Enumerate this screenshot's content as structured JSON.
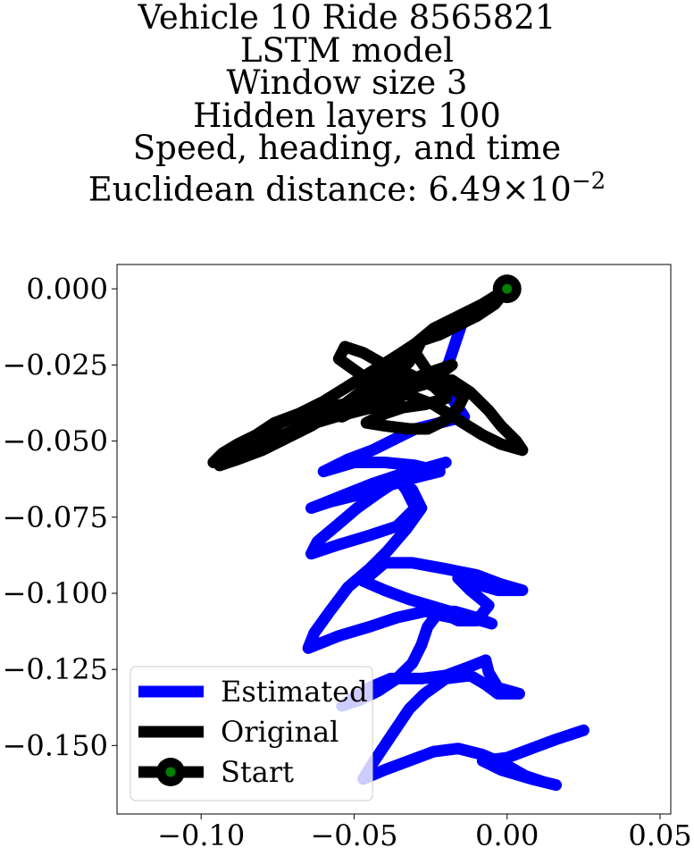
{
  "title_lines": [
    "Vehicle 10 Ride 8565821",
    "LSTM model",
    "Window size 3",
    "Hidden layers 100",
    "Speed, heading, and time"
  ],
  "title_distance": {
    "prefix": "Euclidean distance: ",
    "mantissa": "6.49",
    "times": "×10",
    "exponent": "−2"
  },
  "chart_data": {
    "type": "line",
    "xlim": [
      -0.1275,
      0.0535
    ],
    "ylim": [
      -0.1725,
      0.008
    ],
    "xticks": [
      {
        "value": -0.1,
        "label": "−0.10"
      },
      {
        "value": -0.05,
        "label": "−0.05"
      },
      {
        "value": 0.0,
        "label": "0.00"
      },
      {
        "value": 0.05,
        "label": "0.05"
      }
    ],
    "yticks": [
      {
        "value": 0.0,
        "label": "0.000"
      },
      {
        "value": -0.025,
        "label": "−0.025"
      },
      {
        "value": -0.05,
        "label": "−0.050"
      },
      {
        "value": -0.075,
        "label": "−0.075"
      },
      {
        "value": -0.1,
        "label": "−0.100"
      },
      {
        "value": -0.125,
        "label": "−0.125"
      },
      {
        "value": -0.15,
        "label": "−0.150"
      }
    ],
    "grid": false,
    "legend_position": "lower-left",
    "series": [
      {
        "name": "Estimated",
        "color": "#0000ff",
        "points": [
          [
            0.0,
            0.0
          ],
          [
            -0.006,
            -0.004
          ],
          [
            -0.012,
            -0.008
          ],
          [
            -0.015,
            -0.012
          ],
          [
            -0.017,
            -0.018
          ],
          [
            -0.019,
            -0.024
          ],
          [
            -0.022,
            -0.03
          ],
          [
            -0.018,
            -0.036
          ],
          [
            -0.014,
            -0.042
          ],
          [
            -0.022,
            -0.044
          ],
          [
            -0.03,
            -0.046
          ],
          [
            -0.036,
            -0.049
          ],
          [
            -0.044,
            -0.053
          ],
          [
            -0.052,
            -0.056
          ],
          [
            -0.06,
            -0.06
          ],
          [
            -0.05,
            -0.057
          ],
          [
            -0.04,
            -0.057
          ],
          [
            -0.03,
            -0.058
          ],
          [
            -0.022,
            -0.06
          ],
          [
            -0.03,
            -0.062
          ],
          [
            -0.04,
            -0.065
          ],
          [
            -0.05,
            -0.068
          ],
          [
            -0.058,
            -0.07
          ],
          [
            -0.064,
            -0.072
          ],
          [
            -0.054,
            -0.068
          ],
          [
            -0.044,
            -0.064
          ],
          [
            -0.035,
            -0.061
          ],
          [
            -0.027,
            -0.059
          ],
          [
            -0.02,
            -0.057
          ],
          [
            -0.028,
            -0.06
          ],
          [
            -0.036,
            -0.063
          ],
          [
            -0.042,
            -0.067
          ],
          [
            -0.049,
            -0.072
          ],
          [
            -0.056,
            -0.078
          ],
          [
            -0.062,
            -0.083
          ],
          [
            -0.064,
            -0.087
          ],
          [
            -0.055,
            -0.084
          ],
          [
            -0.045,
            -0.081
          ],
          [
            -0.036,
            -0.078
          ],
          [
            -0.03,
            -0.072
          ],
          [
            -0.033,
            -0.066
          ],
          [
            -0.036,
            -0.062
          ],
          [
            -0.031,
            -0.066
          ],
          [
            -0.028,
            -0.072
          ],
          [
            -0.033,
            -0.079
          ],
          [
            -0.039,
            -0.086
          ],
          [
            -0.045,
            -0.092
          ],
          [
            -0.052,
            -0.098
          ],
          [
            -0.058,
            -0.106
          ],
          [
            -0.063,
            -0.113
          ],
          [
            -0.065,
            -0.118
          ],
          [
            -0.055,
            -0.114
          ],
          [
            -0.045,
            -0.111
          ],
          [
            -0.036,
            -0.108
          ],
          [
            -0.027,
            -0.106
          ],
          [
            -0.017,
            -0.106
          ],
          [
            -0.01,
            -0.108
          ],
          [
            -0.005,
            -0.11
          ],
          [
            -0.012,
            -0.108
          ],
          [
            -0.022,
            -0.105
          ],
          [
            -0.032,
            -0.102
          ],
          [
            -0.04,
            -0.099
          ],
          [
            -0.047,
            -0.096
          ],
          [
            -0.04,
            -0.09
          ],
          [
            -0.031,
            -0.09
          ],
          [
            -0.02,
            -0.092
          ],
          [
            -0.01,
            -0.094
          ],
          [
            -0.002,
            -0.097
          ],
          [
            0.005,
            -0.099
          ],
          [
            -0.003,
            -0.099
          ],
          [
            -0.01,
            -0.097
          ],
          [
            -0.016,
            -0.095
          ],
          [
            -0.012,
            -0.099
          ],
          [
            -0.006,
            -0.104
          ],
          [
            -0.01,
            -0.109
          ],
          [
            -0.016,
            -0.109
          ],
          [
            -0.018,
            -0.108
          ],
          [
            -0.023,
            -0.107
          ],
          [
            -0.026,
            -0.111
          ],
          [
            -0.028,
            -0.117
          ],
          [
            -0.031,
            -0.123
          ],
          [
            -0.036,
            -0.128
          ],
          [
            -0.042,
            -0.132
          ],
          [
            -0.048,
            -0.135
          ],
          [
            -0.054,
            -0.137
          ],
          [
            -0.045,
            -0.131
          ],
          [
            -0.038,
            -0.128
          ],
          [
            -0.028,
            -0.128
          ],
          [
            -0.02,
            -0.127
          ],
          [
            -0.012,
            -0.124
          ],
          [
            -0.007,
            -0.122
          ],
          [
            -0.006,
            -0.126
          ],
          [
            -0.003,
            -0.131
          ],
          [
            0.004,
            -0.133
          ],
          [
            -0.003,
            -0.133
          ],
          [
            -0.007,
            -0.13
          ],
          [
            -0.012,
            -0.127
          ],
          [
            -0.02,
            -0.128
          ],
          [
            -0.027,
            -0.133
          ],
          [
            -0.032,
            -0.138
          ],
          [
            -0.036,
            -0.144
          ],
          [
            -0.04,
            -0.15
          ],
          [
            -0.044,
            -0.156
          ],
          [
            -0.047,
            -0.161
          ],
          [
            -0.04,
            -0.158
          ],
          [
            -0.032,
            -0.155
          ],
          [
            -0.024,
            -0.152
          ],
          [
            -0.016,
            -0.151
          ],
          [
            -0.008,
            -0.153
          ],
          [
            -0.001,
            -0.156
          ],
          [
            0.006,
            -0.16
          ],
          [
            0.012,
            -0.162
          ],
          [
            0.016,
            -0.163
          ],
          [
            0.008,
            -0.161
          ],
          [
            -0.002,
            -0.158
          ],
          [
            -0.008,
            -0.155
          ],
          [
            0.0,
            -0.154
          ],
          [
            0.008,
            -0.151
          ],
          [
            0.016,
            -0.148
          ],
          [
            0.025,
            -0.145
          ]
        ]
      },
      {
        "name": "Original",
        "color": "#000000",
        "points": [
          [
            0.0,
            0.0
          ],
          [
            -0.008,
            -0.005
          ],
          [
            -0.016,
            -0.009
          ],
          [
            -0.024,
            -0.013
          ],
          [
            -0.03,
            -0.018
          ],
          [
            -0.036,
            -0.022
          ],
          [
            -0.044,
            -0.027
          ],
          [
            -0.052,
            -0.032
          ],
          [
            -0.06,
            -0.037
          ],
          [
            -0.068,
            -0.041
          ],
          [
            -0.076,
            -0.044
          ],
          [
            -0.082,
            -0.048
          ],
          [
            -0.088,
            -0.051
          ],
          [
            -0.093,
            -0.054
          ],
          [
            -0.096,
            -0.057
          ],
          [
            -0.09,
            -0.053
          ],
          [
            -0.082,
            -0.048
          ],
          [
            -0.074,
            -0.044
          ],
          [
            -0.066,
            -0.041
          ],
          [
            -0.058,
            -0.039
          ],
          [
            -0.05,
            -0.037
          ],
          [
            -0.042,
            -0.033
          ],
          [
            -0.036,
            -0.028
          ],
          [
            -0.032,
            -0.024
          ],
          [
            -0.03,
            -0.02
          ],
          [
            -0.035,
            -0.023
          ],
          [
            -0.04,
            -0.028
          ],
          [
            -0.048,
            -0.034
          ],
          [
            -0.056,
            -0.04
          ],
          [
            -0.064,
            -0.045
          ],
          [
            -0.072,
            -0.049
          ],
          [
            -0.08,
            -0.053
          ],
          [
            -0.088,
            -0.056
          ],
          [
            -0.094,
            -0.058
          ],
          [
            -0.086,
            -0.054
          ],
          [
            -0.076,
            -0.049
          ],
          [
            -0.066,
            -0.045
          ],
          [
            -0.056,
            -0.042
          ],
          [
            -0.048,
            -0.04
          ],
          [
            -0.04,
            -0.038
          ],
          [
            -0.034,
            -0.035
          ],
          [
            -0.028,
            -0.031
          ],
          [
            -0.022,
            -0.028
          ],
          [
            -0.018,
            -0.025
          ],
          [
            -0.024,
            -0.027
          ],
          [
            -0.032,
            -0.03
          ],
          [
            -0.04,
            -0.033
          ],
          [
            -0.048,
            -0.037
          ],
          [
            -0.054,
            -0.042
          ],
          [
            -0.046,
            -0.038
          ],
          [
            -0.036,
            -0.034
          ],
          [
            -0.026,
            -0.031
          ],
          [
            -0.018,
            -0.03
          ],
          [
            -0.012,
            -0.034
          ],
          [
            -0.006,
            -0.04
          ],
          [
            -0.002,
            -0.045
          ],
          [
            0.003,
            -0.05
          ],
          [
            0.005,
            -0.053
          ],
          [
            -0.002,
            -0.051
          ],
          [
            -0.008,
            -0.048
          ],
          [
            -0.016,
            -0.043
          ],
          [
            -0.024,
            -0.038
          ],
          [
            -0.032,
            -0.035
          ],
          [
            -0.04,
            -0.032
          ],
          [
            -0.048,
            -0.028
          ],
          [
            -0.055,
            -0.023
          ],
          [
            -0.053,
            -0.019
          ],
          [
            -0.047,
            -0.021
          ],
          [
            -0.04,
            -0.025
          ],
          [
            -0.032,
            -0.028
          ],
          [
            -0.024,
            -0.032
          ],
          [
            -0.02,
            -0.036
          ],
          [
            -0.027,
            -0.038
          ],
          [
            -0.034,
            -0.039
          ],
          [
            -0.04,
            -0.041
          ],
          [
            -0.046,
            -0.044
          ],
          [
            -0.04,
            -0.045
          ],
          [
            -0.032,
            -0.046
          ],
          [
            -0.026,
            -0.046
          ],
          [
            -0.02,
            -0.043
          ],
          [
            -0.016,
            -0.039
          ],
          [
            -0.014,
            -0.035
          ],
          [
            -0.02,
            -0.032
          ],
          [
            -0.026,
            -0.027
          ],
          [
            -0.03,
            -0.021
          ],
          [
            -0.028,
            -0.017
          ],
          [
            -0.022,
            -0.015
          ],
          [
            -0.016,
            -0.012
          ],
          [
            -0.01,
            -0.009
          ],
          [
            -0.004,
            -0.005
          ],
          [
            0.0,
            0.0
          ]
        ]
      },
      {
        "name": "Start",
        "color": "#008000",
        "points": [
          [
            0.0,
            0.0
          ]
        ]
      }
    ]
  },
  "legend": [
    {
      "label": "Estimated",
      "color": "#0000ff",
      "style": "line"
    },
    {
      "label": "Original",
      "color": "#000000",
      "style": "line"
    },
    {
      "label": "Start",
      "color": "#000000",
      "marker_color": "#008000",
      "style": "line-marker"
    }
  ]
}
